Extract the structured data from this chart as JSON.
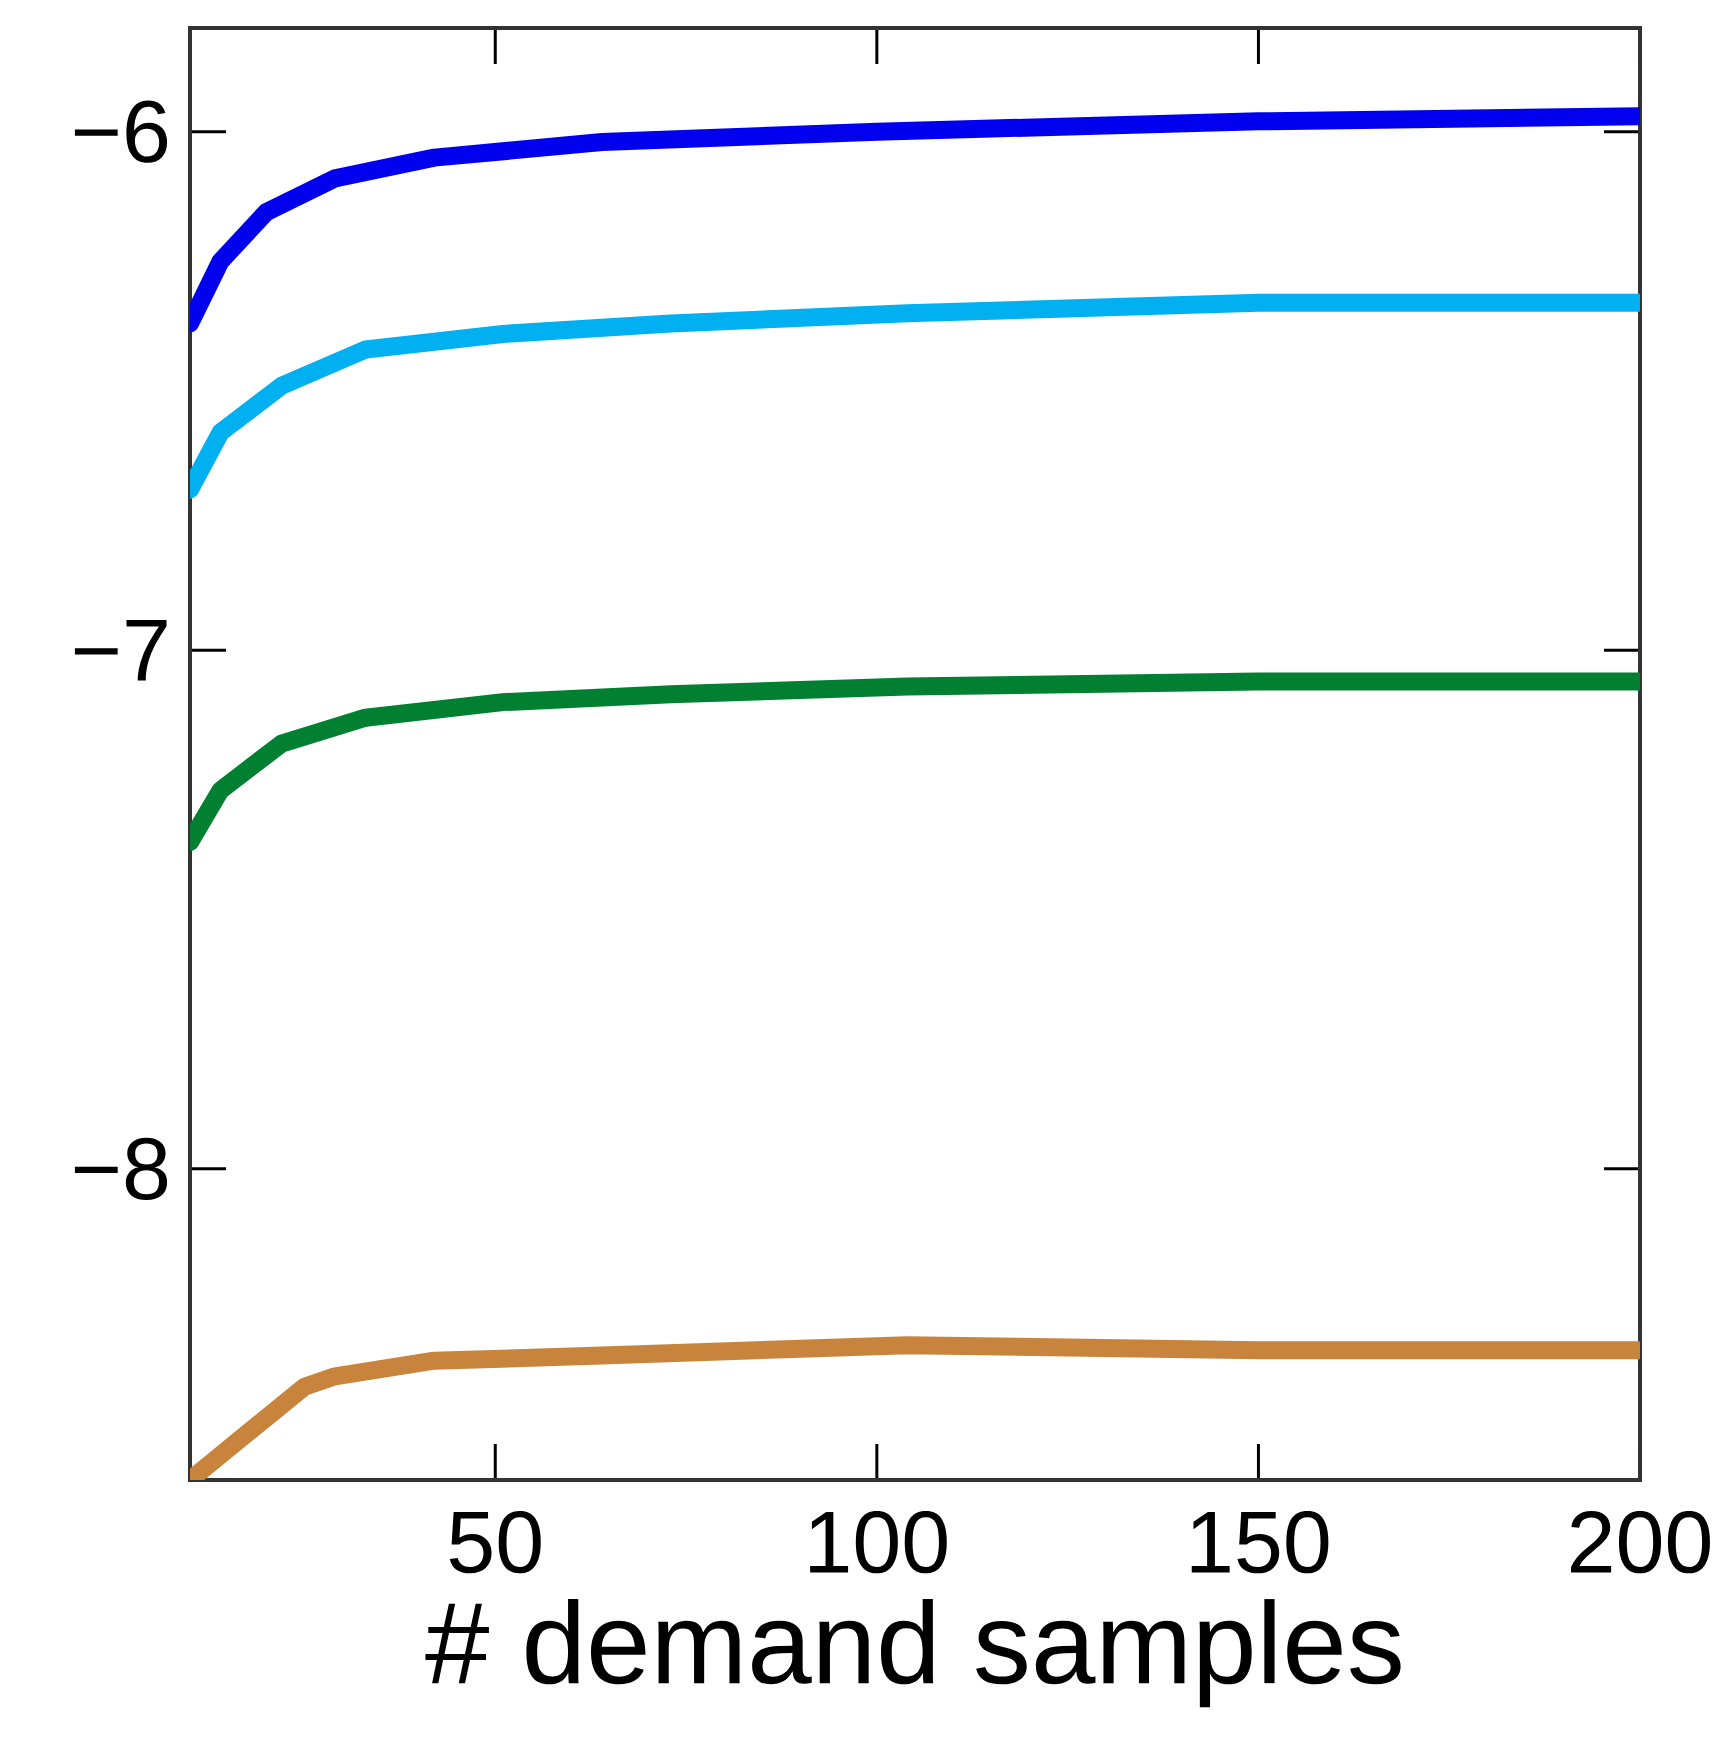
{
  "chart_data": {
    "type": "line",
    "xlabel": "# demand samples",
    "xlim": [
      10,
      200
    ],
    "ylim": [
      -8.6,
      -5.8
    ],
    "xticks": [
      50,
      100,
      150,
      200
    ],
    "yticks": [
      {
        "value": -8,
        "label": "−8"
      },
      {
        "value": -7,
        "label": "−7"
      },
      {
        "value": -6,
        "label": "−6"
      }
    ],
    "series": [
      {
        "color": "#0000ee",
        "x": [
          10,
          14,
          20,
          29,
          42,
          64,
          100,
          150,
          200
        ],
        "values": [
          -6.37,
          -6.25,
          -6.155,
          -6.09,
          -6.05,
          -6.02,
          -6.0,
          -5.98,
          -5.97
        ]
      },
      {
        "color": "#00b0f0",
        "x": [
          10,
          14,
          22,
          33,
          51,
          73,
          104,
          150,
          200
        ],
        "values": [
          -6.69,
          -6.58,
          -6.49,
          -6.42,
          -6.39,
          -6.37,
          -6.35,
          -6.33,
          -6.33
        ]
      },
      {
        "color": "#008030",
        "x": [
          10,
          14,
          22,
          33,
          51,
          73,
          104,
          150,
          200
        ],
        "values": [
          -7.37,
          -7.27,
          -7.18,
          -7.13,
          -7.1,
          -7.085,
          -7.07,
          -7.06,
          -7.06
        ]
      },
      {
        "color": "#c8843c",
        "x": [
          10,
          25,
          29,
          42,
          64,
          104,
          150,
          200
        ],
        "values": [
          -8.6,
          -8.42,
          -8.4,
          -8.37,
          -8.36,
          -8.34,
          -8.35,
          -8.35
        ]
      }
    ]
  }
}
